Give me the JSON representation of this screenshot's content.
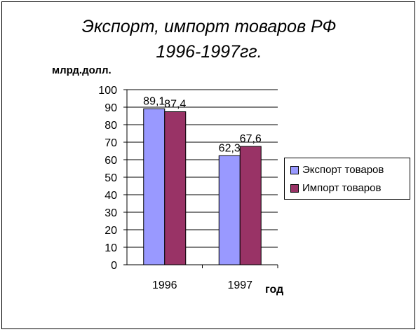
{
  "chart_data": {
    "type": "bar",
    "title": "Экспорт, импорт товаров РФ",
    "subtitle": "1996-1997гг.",
    "ylabel": "млрд.долл.",
    "xlabel": "год",
    "categories": [
      "1996",
      "1997"
    ],
    "ylim": [
      0,
      100
    ],
    "yticks": [
      "0",
      "10",
      "20",
      "30",
      "40",
      "50",
      "60",
      "70",
      "80",
      "90",
      "100"
    ],
    "grid": true,
    "legend_position": "right",
    "series": [
      {
        "name": "Экспорт товаров",
        "values": [
          89.1,
          62.3
        ],
        "labels": [
          "89,1",
          "62,3"
        ],
        "color": "#9999ff"
      },
      {
        "name": "Импорт товаров",
        "values": [
          87.4,
          67.6
        ],
        "labels": [
          "87,4",
          "67,6"
        ],
        "color": "#993366"
      }
    ]
  }
}
